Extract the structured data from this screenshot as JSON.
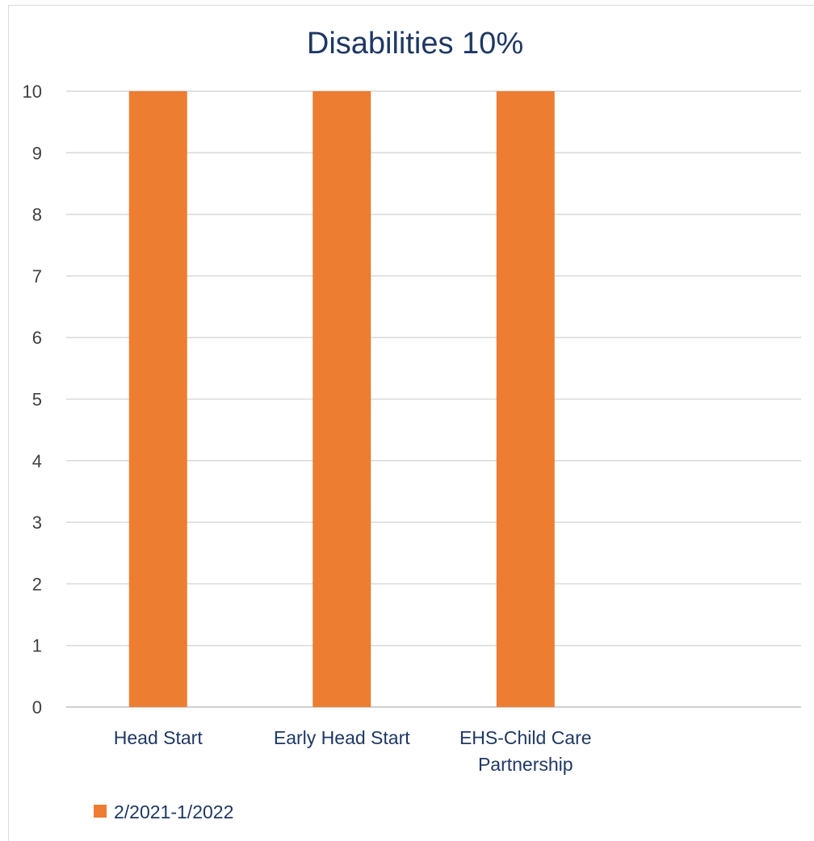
{
  "chart_data": {
    "type": "bar",
    "title": "Disabilities 10%",
    "categories": [
      "Head Start",
      "Early Head Start",
      "EHS-Child Care Partnership",
      ""
    ],
    "series": [
      {
        "name": "2/2021-1/2022",
        "color": "#ed7d31",
        "values": [
          10,
          10,
          10,
          null
        ]
      }
    ],
    "xlabel": "",
    "ylabel": "",
    "ylim": [
      0,
      10
    ],
    "yticks": [
      0,
      1,
      2,
      3,
      4,
      5,
      6,
      7,
      8,
      9,
      10
    ],
    "grid": true,
    "legend_position": "bottom-left"
  }
}
